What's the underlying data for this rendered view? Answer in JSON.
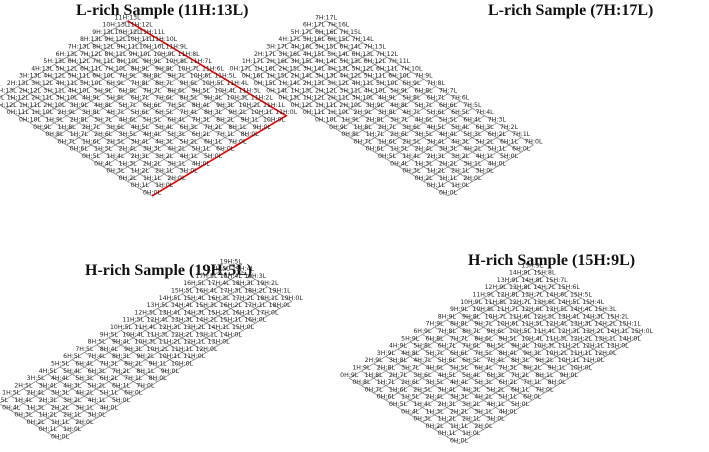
{
  "panels": [
    {
      "id": "p1",
      "title": "L-rich Sample (11H:13L)",
      "H": 11,
      "L": 13,
      "red_path": [
        [
          11,
          13
        ],
        [
          11,
          12
        ],
        [
          11,
          11
        ],
        [
          11,
          10
        ],
        [
          11,
          9
        ],
        [
          11,
          8
        ],
        [
          11,
          7
        ],
        [
          11,
          6
        ],
        [
          11,
          5
        ],
        [
          11,
          4
        ],
        [
          11,
          3
        ],
        [
          11,
          2
        ],
        [
          11,
          1
        ],
        [
          11,
          0
        ],
        [
          10,
          0
        ],
        [
          9,
          0
        ],
        [
          8,
          0
        ],
        [
          7,
          0
        ],
        [
          6,
          0
        ],
        [
          5,
          0
        ],
        [
          4,
          0
        ],
        [
          3,
          0
        ],
        [
          2,
          0
        ],
        [
          1,
          0
        ],
        [
          0,
          0
        ]
      ]
    },
    {
      "id": "p2",
      "title": "L-rich Sample (7H:17L)",
      "H": 7,
      "L": 17
    },
    {
      "id": "p3",
      "title": "H-rich Sample (19H:5L)",
      "H": 19,
      "L": 5
    },
    {
      "id": "p4",
      "title": "H-rich Sample (15H:9L)",
      "H": 15,
      "L": 9
    }
  ],
  "colors": {
    "edge": "#7a7a7a",
    "highlight": "#e00000",
    "text": "#222222"
  }
}
